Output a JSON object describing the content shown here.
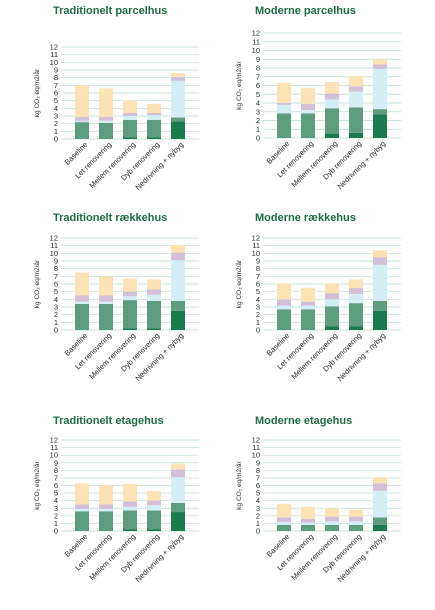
{
  "colors": {
    "dark_green": "#1b7a4e",
    "mid_green": "#5e9c80",
    "light_blue": "#d3eef5",
    "lavender": "#d3bfd6",
    "peach": "#fde2b6",
    "grid": "#b8ddd0",
    "title": "#1e6b45",
    "axis_text": "#2b2b2b"
  },
  "chart_data": [
    {
      "type": "bar",
      "stacked": true,
      "title": "Traditionelt parcelhus",
      "ylabel": "kg CO₂ eq/m2/år",
      "ylim": [
        0,
        12
      ],
      "categories": [
        "Baseline",
        "Let renovering",
        "Mellem renovering",
        "Dyb renovering",
        "Nedrivning + nybyg"
      ],
      "series": [
        {
          "values": [
            0.0,
            0.0,
            0.2,
            0.2,
            2.3
          ]
        },
        {
          "values": [
            2.2,
            2.1,
            2.3,
            2.3,
            0.5
          ]
        },
        {
          "values": [
            0.2,
            0.3,
            0.5,
            0.6,
            4.8
          ]
        },
        {
          "values": [
            0.5,
            0.5,
            0.4,
            0.3,
            0.5
          ]
        },
        {
          "values": [
            4.1,
            3.7,
            1.6,
            1.2,
            0.5
          ]
        }
      ]
    },
    {
      "type": "bar",
      "stacked": true,
      "title": "Moderne parcelhus",
      "ylabel": "kg CO₂ eq/m2/år",
      "ylim": [
        0,
        12
      ],
      "categories": [
        "Baseline",
        "Let renovering",
        "Mellem renovering",
        "Dyb renovering",
        "Nedrivning + nybyg"
      ],
      "series": [
        {
          "values": [
            0.0,
            0.0,
            0.5,
            0.6,
            2.7
          ]
        },
        {
          "values": [
            2.8,
            2.8,
            2.9,
            2.9,
            0.6
          ]
        },
        {
          "values": [
            1.0,
            0.4,
            1.0,
            1.8,
            4.6
          ]
        },
        {
          "values": [
            0.2,
            0.7,
            0.7,
            0.6,
            0.5
          ]
        },
        {
          "values": [
            2.3,
            1.8,
            1.3,
            1.2,
            0.6
          ]
        }
      ]
    },
    {
      "type": "bar",
      "stacked": true,
      "title": "Traditionelt rækkehus",
      "ylabel": "kg CO₂ eq/m2/år",
      "ylim": [
        0,
        12
      ],
      "categories": [
        "Baseline",
        "Let renovering",
        "Mellem renovering",
        "Dyb renovering",
        "Nedrivning + nybyg"
      ],
      "series": [
        {
          "values": [
            0.0,
            0.0,
            0.2,
            0.2,
            2.5
          ]
        },
        {
          "values": [
            3.4,
            3.4,
            3.7,
            3.6,
            1.3
          ]
        },
        {
          "values": [
            0.3,
            0.3,
            0.5,
            0.8,
            5.3
          ]
        },
        {
          "values": [
            0.8,
            0.8,
            0.6,
            0.7,
            1.0
          ]
        },
        {
          "values": [
            3.0,
            2.5,
            1.7,
            1.3,
            1.0
          ]
        }
      ]
    },
    {
      "type": "bar",
      "stacked": true,
      "title": "Moderne rækkehus",
      "ylabel": "kg CO₂ eq/m2/år",
      "ylim": [
        0,
        12
      ],
      "categories": [
        "Baseline",
        "Let renovering",
        "Mellem renovering",
        "Dyb renovering",
        "Nedrivning + nybyg"
      ],
      "series": [
        {
          "values": [
            0.0,
            0.0,
            0.5,
            0.5,
            2.5
          ]
        },
        {
          "values": [
            2.7,
            2.7,
            2.6,
            3.0,
            1.3
          ]
        },
        {
          "values": [
            0.5,
            0.5,
            0.9,
            1.2,
            4.7
          ]
        },
        {
          "values": [
            0.8,
            0.5,
            0.8,
            0.8,
            1.0
          ]
        },
        {
          "values": [
            2.1,
            1.8,
            1.3,
            1.1,
            0.9
          ]
        }
      ]
    },
    {
      "type": "bar",
      "stacked": true,
      "title": "Traditionelt etagehus",
      "ylabel": "kg CO₂ eq/m2/år",
      "ylim": [
        0,
        12
      ],
      "categories": [
        "Baseline",
        "Let renovering",
        "Mellem renovering",
        "Dyb renovering",
        "Nedrivning + nybyg"
      ],
      "series": [
        {
          "values": [
            0.0,
            0.0,
            0.2,
            0.2,
            2.5
          ]
        },
        {
          "values": [
            2.6,
            2.6,
            2.5,
            2.5,
            1.2
          ]
        },
        {
          "values": [
            0.3,
            0.3,
            0.5,
            0.7,
            3.4
          ]
        },
        {
          "values": [
            0.6,
            0.6,
            0.7,
            0.6,
            1.0
          ]
        },
        {
          "values": [
            2.8,
            2.5,
            2.3,
            1.3,
            0.8
          ]
        }
      ]
    },
    {
      "type": "bar",
      "stacked": true,
      "title": "Moderne etagehus",
      "ylabel": "kg CO₂ eq/m2/år",
      "ylim": [
        0,
        12
      ],
      "categories": [
        "Baseline",
        "Let renovering",
        "Mellem renovering",
        "Dyb renovering",
        "Nedrivning + nybyg"
      ],
      "series": [
        {
          "values": [
            0.0,
            0.0,
            0.0,
            0.0,
            0.8
          ]
        },
        {
          "values": [
            0.8,
            0.8,
            0.8,
            0.8,
            1.0
          ]
        },
        {
          "values": [
            0.4,
            0.3,
            0.5,
            0.5,
            3.5
          ]
        },
        {
          "values": [
            0.6,
            0.5,
            0.6,
            0.6,
            1.0
          ]
        },
        {
          "values": [
            1.8,
            1.6,
            1.1,
            0.9,
            0.8
          ]
        }
      ]
    }
  ]
}
